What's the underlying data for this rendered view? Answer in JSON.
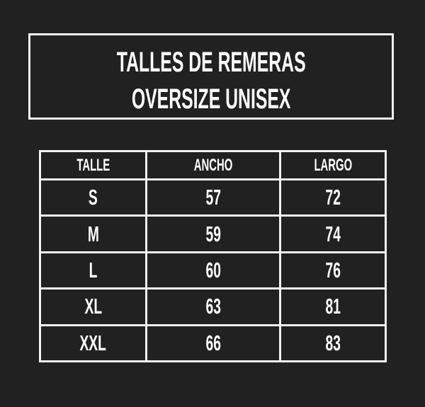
{
  "title": {
    "line1": "TALLES DE REMERAS",
    "line2": "OVERSIZE UNISEX"
  },
  "table": {
    "headers": [
      "TALLE",
      "ANCHO",
      "LARGO"
    ],
    "rows": [
      [
        "S",
        "57",
        "72"
      ],
      [
        "M",
        "59",
        "74"
      ],
      [
        "L",
        "60",
        "76"
      ],
      [
        "XL",
        "63",
        "81"
      ],
      [
        "XXL",
        "66",
        "83"
      ]
    ]
  },
  "colors": {
    "background": "#212121",
    "foreground": "#f2f2f2"
  }
}
